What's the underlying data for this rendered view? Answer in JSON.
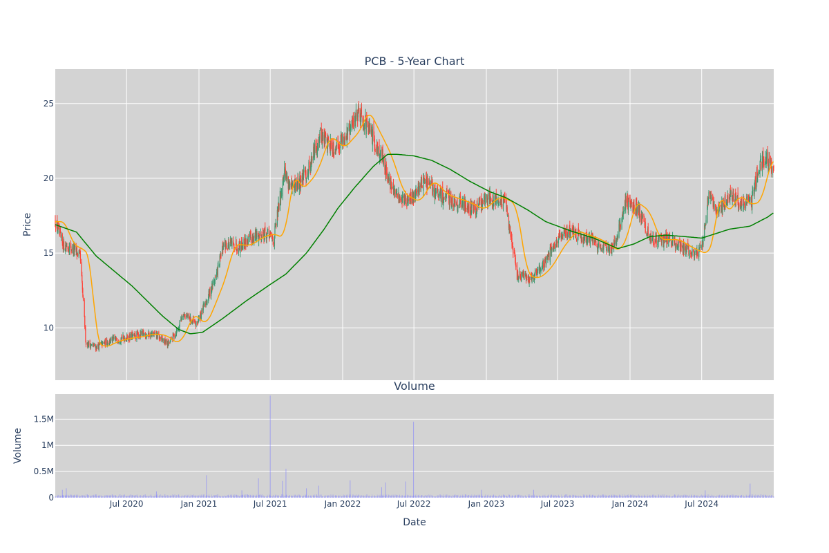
{
  "chart_data": [
    {
      "type": "candlestick",
      "title": "PCB - 5-Year Chart",
      "ylabel": "Price",
      "ylim": [
        6.5,
        27.3
      ],
      "yticks": [
        10,
        15,
        20,
        25
      ],
      "grid": true,
      "legend": false,
      "series": [
        {
          "kind": "candles",
          "up_color": "#3d9970",
          "down_color": "#ff4136"
        },
        {
          "kind": "moving-average-short",
          "color": "#ffa500"
        },
        {
          "kind": "moving-average-long",
          "color": "#008000"
        }
      ],
      "close_keypoints": [
        [
          "2020-01-02",
          17.1
        ],
        [
          "2020-01-20",
          15.6
        ],
        [
          "2020-02-20",
          15.2
        ],
        [
          "2020-03-05",
          14.8
        ],
        [
          "2020-03-20",
          9.0
        ],
        [
          "2020-04-15",
          8.7
        ],
        [
          "2020-05-15",
          9.1
        ],
        [
          "2020-06-15",
          9.3
        ],
        [
          "2020-07-15",
          9.4
        ],
        [
          "2020-08-15",
          9.6
        ],
        [
          "2020-09-15",
          9.5
        ],
        [
          "2020-10-15",
          8.9
        ],
        [
          "2020-11-10",
          10.0
        ],
        [
          "2020-11-20",
          11.0
        ],
        [
          "2020-12-25",
          10.2
        ],
        [
          "2021-01-20",
          11.8
        ],
        [
          "2021-02-15",
          13.6
        ],
        [
          "2021-03-05",
          15.6
        ],
        [
          "2021-04-15",
          15.5
        ],
        [
          "2021-05-20",
          16.1
        ],
        [
          "2021-06-20",
          16.3
        ],
        [
          "2021-07-10",
          15.9
        ],
        [
          "2021-08-05",
          20.5
        ],
        [
          "2021-08-25",
          19.2
        ],
        [
          "2021-10-01",
          20.3
        ],
        [
          "2021-11-05",
          22.9
        ],
        [
          "2021-12-10",
          22.0
        ],
        [
          "2022-01-20",
          23.2
        ],
        [
          "2022-02-10",
          24.6
        ],
        [
          "2022-03-20",
          22.6
        ],
        [
          "2022-04-10",
          21.5
        ],
        [
          "2022-05-10",
          19.0
        ],
        [
          "2022-06-20",
          18.4
        ],
        [
          "2022-07-25",
          19.9
        ],
        [
          "2022-08-30",
          18.9
        ],
        [
          "2022-10-25",
          18.4
        ],
        [
          "2022-12-01",
          17.9
        ],
        [
          "2023-01-10",
          18.8
        ],
        [
          "2023-02-20",
          18.3
        ],
        [
          "2023-03-20",
          13.5
        ],
        [
          "2023-04-20",
          13.3
        ],
        [
          "2023-05-20",
          14.0
        ],
        [
          "2023-06-25",
          15.6
        ],
        [
          "2023-07-25",
          16.5
        ],
        [
          "2023-09-25",
          15.9
        ],
        [
          "2023-11-10",
          15.1
        ],
        [
          "2023-12-01",
          16.2
        ],
        [
          "2023-12-20",
          18.5
        ],
        [
          "2024-01-25",
          17.8
        ],
        [
          "2024-02-20",
          15.9
        ],
        [
          "2024-04-10",
          15.9
        ],
        [
          "2024-05-10",
          15.4
        ],
        [
          "2024-06-20",
          14.9
        ],
        [
          "2024-07-05",
          15.8
        ],
        [
          "2024-07-20",
          19.3
        ],
        [
          "2024-08-10",
          17.6
        ],
        [
          "2024-09-10",
          18.9
        ],
        [
          "2024-10-10",
          18.2
        ],
        [
          "2024-11-05",
          18.5
        ],
        [
          "2024-11-25",
          21.0
        ],
        [
          "2024-12-15",
          21.4
        ],
        [
          "2024-12-31",
          20.3
        ]
      ],
      "ma_long_keypoints": [
        [
          "2020-01-02",
          16.9
        ],
        [
          "2020-02-25",
          16.4
        ],
        [
          "2020-04-15",
          14.8
        ],
        [
          "2020-07-15",
          12.8
        ],
        [
          "2020-09-30",
          10.8
        ],
        [
          "2020-11-10",
          9.9
        ],
        [
          "2020-12-10",
          9.6
        ],
        [
          "2021-01-10",
          9.7
        ],
        [
          "2021-03-01",
          10.6
        ],
        [
          "2021-05-01",
          11.8
        ],
        [
          "2021-07-01",
          12.9
        ],
        [
          "2021-08-10",
          13.6
        ],
        [
          "2021-10-01",
          15.0
        ],
        [
          "2021-11-15",
          16.6
        ],
        [
          "2021-12-20",
          18.0
        ],
        [
          "2022-02-01",
          19.4
        ],
        [
          "2022-03-20",
          20.8
        ],
        [
          "2022-04-25",
          21.6
        ],
        [
          "2022-05-20",
          21.6
        ],
        [
          "2022-07-01",
          21.5
        ],
        [
          "2022-08-15",
          21.2
        ],
        [
          "2022-10-01",
          20.6
        ],
        [
          "2022-11-20",
          19.8
        ],
        [
          "2023-01-10",
          19.1
        ],
        [
          "2023-02-20",
          18.7
        ],
        [
          "2023-04-15",
          17.9
        ],
        [
          "2023-06-01",
          17.1
        ],
        [
          "2023-08-01",
          16.5
        ],
        [
          "2023-10-01",
          16.0
        ],
        [
          "2023-12-01",
          15.3
        ],
        [
          "2024-01-10",
          15.6
        ],
        [
          "2024-02-20",
          16.1
        ],
        [
          "2024-04-01",
          16.2
        ],
        [
          "2024-05-20",
          16.1
        ],
        [
          "2024-07-01",
          16.0
        ],
        [
          "2024-09-10",
          16.6
        ],
        [
          "2024-11-01",
          16.8
        ],
        [
          "2024-12-15",
          17.4
        ],
        [
          "2024-12-31",
          17.7
        ]
      ]
    },
    {
      "type": "bar",
      "title": "Volume",
      "xlabel": "Date",
      "ylabel": "Volume",
      "ylim": [
        0,
        1980000
      ],
      "yticks": [
        0,
        500000,
        1000000,
        1500000
      ],
      "ytick_labels": [
        "0",
        "0.5M",
        "1M",
        "1.5M"
      ],
      "xlim": [
        "2020-01-02",
        "2024-12-31"
      ],
      "xticks": [
        "2020-07-01",
        "2021-01-01",
        "2021-07-01",
        "2022-01-01",
        "2022-07-01",
        "2023-01-01",
        "2023-07-01",
        "2024-01-01",
        "2024-07-01"
      ],
      "xtick_labels": [
        "Jul 2020",
        "Jan 2021",
        "Jul 2021",
        "Jan 2022",
        "Jul 2022",
        "Jan 2023",
        "Jul 2023",
        "Jan 2024",
        "Jul 2024"
      ],
      "bar_color": "#8080ff",
      "typical_volume": 40000,
      "spikes": [
        [
          "2020-01-20",
          150000
        ],
        [
          "2020-01-30",
          180000
        ],
        [
          "2020-09-15",
          120000
        ],
        [
          "2021-01-20",
          430000
        ],
        [
          "2021-04-20",
          140000
        ],
        [
          "2021-06-01",
          370000
        ],
        [
          "2021-07-01",
          1950000
        ],
        [
          "2021-08-01",
          320000
        ],
        [
          "2021-08-10",
          550000
        ],
        [
          "2021-10-01",
          180000
        ],
        [
          "2021-11-01",
          230000
        ],
        [
          "2022-01-20",
          330000
        ],
        [
          "2022-04-10",
          200000
        ],
        [
          "2022-04-20",
          290000
        ],
        [
          "2022-06-10",
          310000
        ],
        [
          "2022-06-30",
          1450000
        ],
        [
          "2022-12-20",
          150000
        ],
        [
          "2023-05-01",
          150000
        ],
        [
          "2024-07-10",
          140000
        ],
        [
          "2024-11-01",
          270000
        ]
      ]
    }
  ]
}
